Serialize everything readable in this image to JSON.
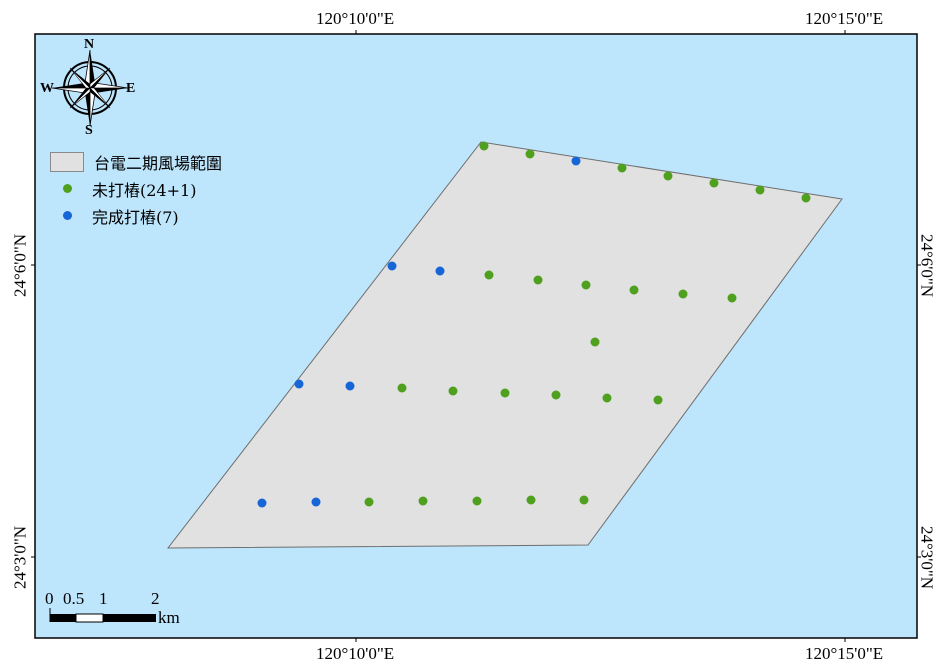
{
  "colors": {
    "sea": "#bde5fb",
    "area_fill": "#e1e1e1",
    "area_stroke": "#6e6e6e",
    "not_piled": "#4fa01f",
    "piled": "#1666d8"
  },
  "graticule": {
    "top": [
      "120°10'0\"E",
      "120°15'0\"E"
    ],
    "bottom": [
      "120°10'0\"E",
      "120°15'0\"E"
    ],
    "left": [
      "24°6'0\"N",
      "24°3'0\"N"
    ],
    "right": [
      "24°6'0\"N",
      "24°3'0\"N"
    ]
  },
  "compass": {
    "n": "N",
    "s": "S",
    "e": "E",
    "w": "W"
  },
  "legend": {
    "area": "台電二期風場範圍",
    "not_piled": "未打樁(24+1)",
    "piled": "完成打樁(7)"
  },
  "scale": {
    "ticks": [
      "0",
      "0.5",
      "1",
      "2"
    ],
    "unit": "km"
  },
  "turbines": [
    {
      "status": "not_piled"
    },
    {
      "status": "not_piled"
    },
    {
      "status": "piled"
    },
    {
      "status": "not_piled"
    },
    {
      "status": "not_piled"
    },
    {
      "status": "not_piled"
    },
    {
      "status": "not_piled"
    },
    {
      "status": "not_piled"
    },
    {
      "status": "piled"
    },
    {
      "status": "piled"
    },
    {
      "status": "not_piled"
    },
    {
      "status": "not_piled"
    },
    {
      "status": "not_piled"
    },
    {
      "status": "not_piled"
    },
    {
      "status": "not_piled"
    },
    {
      "status": "not_piled"
    },
    {
      "status": "not_piled"
    },
    {
      "status": "piled"
    },
    {
      "status": "piled"
    },
    {
      "status": "not_piled"
    },
    {
      "status": "not_piled"
    },
    {
      "status": "not_piled"
    },
    {
      "status": "not_piled"
    },
    {
      "status": "not_piled"
    },
    {
      "status": "not_piled"
    },
    {
      "status": "piled"
    },
    {
      "status": "piled"
    },
    {
      "status": "not_piled"
    },
    {
      "status": "not_piled"
    },
    {
      "status": "not_piled"
    },
    {
      "status": "not_piled"
    },
    {
      "status": "not_piled"
    }
  ]
}
